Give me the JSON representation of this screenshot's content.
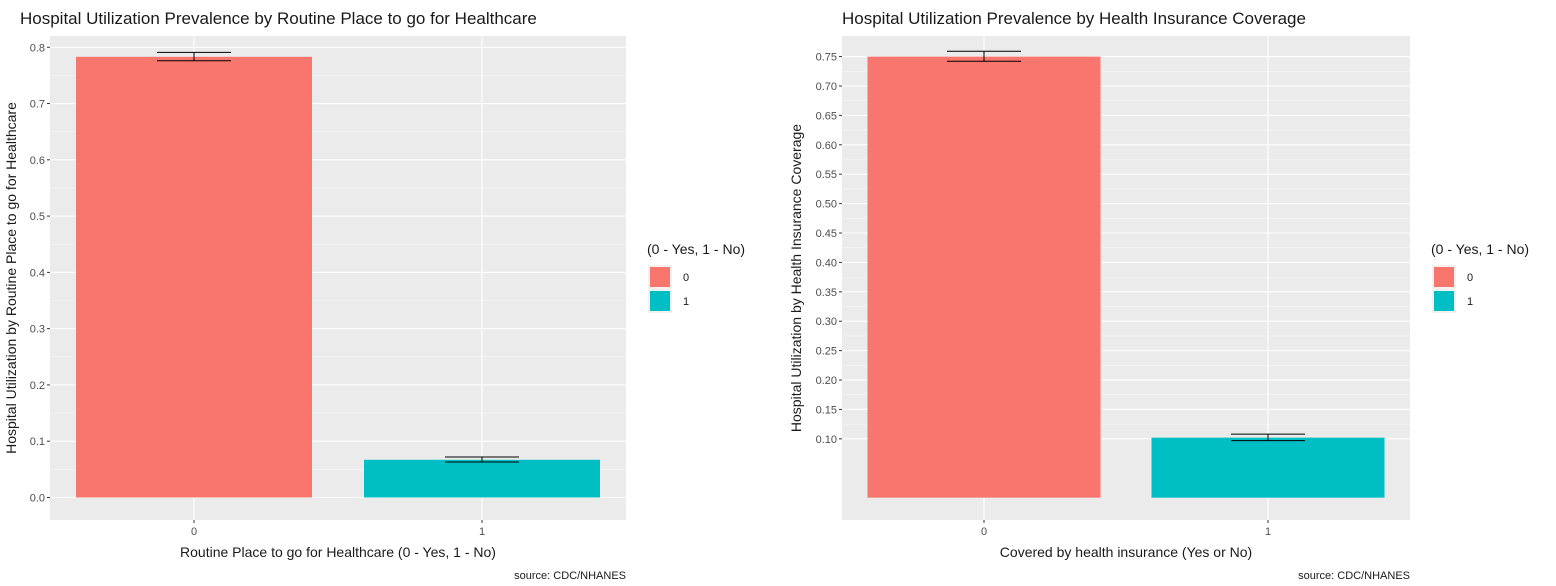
{
  "chart_data": [
    {
      "type": "bar",
      "title": "Hospital Utilization Prevalence by Routine Place to go for Healthcare",
      "xlabel": "Routine Place to go for Healthcare (0 - Yes, 1 - No)",
      "ylabel": "Hospital Utilization by Routine Place to go for Healthcare",
      "categories": [
        "0",
        "1"
      ],
      "values": [
        0.783,
        0.067
      ],
      "error_bars": [
        [
          0.776,
          0.791
        ],
        [
          0.063,
          0.072
        ]
      ],
      "ylim": [
        -0.04,
        0.82
      ],
      "yticks": [
        0.0,
        0.1,
        0.2,
        0.3,
        0.4,
        0.5,
        0.6,
        0.7,
        0.8
      ],
      "ytick_labels": [
        "0.0",
        "0.1",
        "0.2",
        "0.3",
        "0.4",
        "0.5",
        "0.6",
        "0.7",
        "0.8"
      ],
      "legend": {
        "title": "(0 - Yes, 1 - No)",
        "entries": [
          "0",
          "1"
        ],
        "placement": "right"
      },
      "caption": "source: CDC/NHANES",
      "colors": [
        "#F8766D",
        "#00BFC4"
      ],
      "grid": true
    },
    {
      "type": "bar",
      "title": "Hospital Utilization Prevalence by Health Insurance Coverage",
      "xlabel": "Covered by health insurance (Yes or No)",
      "ylabel": "Hospital Utilization by Health Insurance Coverage",
      "categories": [
        "0",
        "1"
      ],
      "values": [
        0.75,
        0.102
      ],
      "error_bars": [
        [
          0.742,
          0.759
        ],
        [
          0.097,
          0.108
        ]
      ],
      "ylim": [
        -0.038,
        0.785
      ],
      "yticks": [
        0.1,
        0.15,
        0.2,
        0.25,
        0.3,
        0.35,
        0.4,
        0.45,
        0.5,
        0.55,
        0.6,
        0.65,
        0.7,
        0.75
      ],
      "ytick_labels": [
        "0.10",
        "0.15",
        "0.20",
        "0.25",
        "0.30",
        "0.35",
        "0.40",
        "0.45",
        "0.50",
        "0.55",
        "0.60",
        "0.65",
        "0.70",
        "0.75"
      ],
      "legend": {
        "title": "(0 - Yes, 1 - No)",
        "entries": [
          "0",
          "1"
        ],
        "placement": "right"
      },
      "caption": "source: CDC/NHANES",
      "colors": [
        "#F8766D",
        "#00BFC4"
      ],
      "grid": true
    }
  ]
}
